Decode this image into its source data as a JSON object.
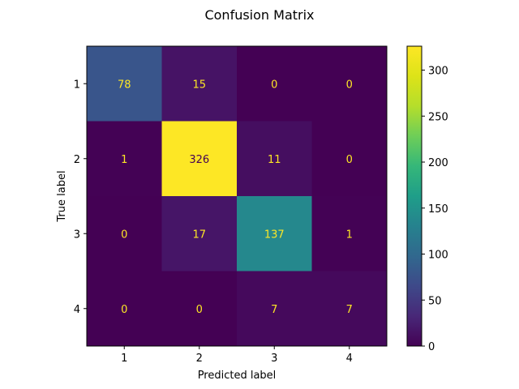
{
  "chart_data": {
    "type": "heatmap",
    "title": "Confusion Matrix",
    "xlabel": "Predicted label",
    "ylabel": "True label",
    "x_categories": [
      "1",
      "2",
      "3",
      "4"
    ],
    "y_categories": [
      "1",
      "2",
      "3",
      "4"
    ],
    "values": [
      [
        78,
        15,
        0,
        0
      ],
      [
        1,
        326,
        11,
        0
      ],
      [
        0,
        17,
        137,
        1
      ],
      [
        0,
        0,
        7,
        7
      ]
    ],
    "colormap": "viridis",
    "value_range": [
      0,
      326
    ],
    "colorbar_ticks": [
      0,
      50,
      100,
      150,
      200,
      250,
      300
    ],
    "cell_text_color_on_dark": "#fde725",
    "cell_text_color_on_light": "#440154"
  }
}
